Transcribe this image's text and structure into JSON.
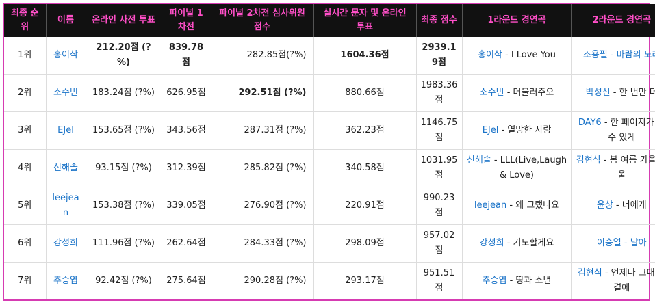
{
  "headers": [
    "최종 순위",
    "이름",
    "온라인 사전 투표",
    "파이널 1차전",
    "파이널 2차전 심사위원 점수",
    "실시간 문자 및 온라인 투표",
    "최종 점수",
    "1라운드 경연곡",
    "2라운드 경연곡"
  ],
  "rows": [
    {
      "rank": "1위",
      "name": "홍이삭",
      "pre": "212.20점 (?%)",
      "f1": "839.78점",
      "judge": "282.85점(?%)",
      "live": "1604.36점",
      "total": "2939.19점",
      "r1_artist": "홍이삭",
      "r1_song": " - I Love You",
      "r2_artist": "조용필",
      "r2_song": " - 바람의 노래"
    },
    {
      "rank": "2위",
      "name": "소수빈",
      "pre": "183.24점 (?%)",
      "f1": "626.95점",
      "judge": "292.51점 (?%)",
      "live": "880.66점",
      "total": "1983.36점",
      "r1_artist": "소수빈",
      "r1_song": " - 머물러주오",
      "r2_artist": "박성신",
      "r2_song": " - 한 번만 더"
    },
    {
      "rank": "3위",
      "name": "EJel",
      "pre": "153.65점 (?%)",
      "f1": "343.56점",
      "judge": "287.31점 (?%)",
      "live": "362.23점",
      "total": "1146.75점",
      "r1_artist": "EJel",
      "r1_song": " - 열망한 사랑",
      "r2_artist": "DAY6",
      "r2_song": " - 한 페이지가 될 수 있게"
    },
    {
      "rank": "4위",
      "name": "신해솔",
      "pre": "93.15점 (?%)",
      "f1": "312.39점",
      "judge": "285.82점 (?%)",
      "live": "340.58점",
      "total": "1031.95점",
      "r1_artist": "신해솔",
      "r1_song": " - LLL(Live,Laugh & Love)",
      "r2_artist": "김현식",
      "r2_song": " - 봄 여름 가을 겨울"
    },
    {
      "rank": "5위",
      "name": "leejean",
      "pre": "153.38점 (?%)",
      "f1": "339.05점",
      "judge": "276.90점 (?%)",
      "live": "220.91점",
      "total": "990.23점",
      "r1_artist": "leejean",
      "r1_song": " - 왜 그랬나요",
      "r2_artist": "윤상",
      "r2_song": " - 너에게"
    },
    {
      "rank": "6위",
      "name": "강성희",
      "pre": "111.96점 (?%)",
      "f1": "262.64점",
      "judge": "284.33점 (?%)",
      "live": "298.09점",
      "total": "957.02점",
      "r1_artist": "강성희",
      "r1_song": " - 기도할게요",
      "r2_artist": "이승열",
      "r2_song": " - 날아"
    },
    {
      "rank": "7위",
      "name": "추승엽",
      "pre": "92.42점 (?%)",
      "f1": "275.64점",
      "judge": "290.28점 (?%)",
      "live": "293.17점",
      "total": "951.51점",
      "r1_artist": "추승엽",
      "r1_song": " - 땅과 소년",
      "r2_artist": "김현식",
      "r2_song": " - 언제나 그대 내곁에"
    }
  ]
}
